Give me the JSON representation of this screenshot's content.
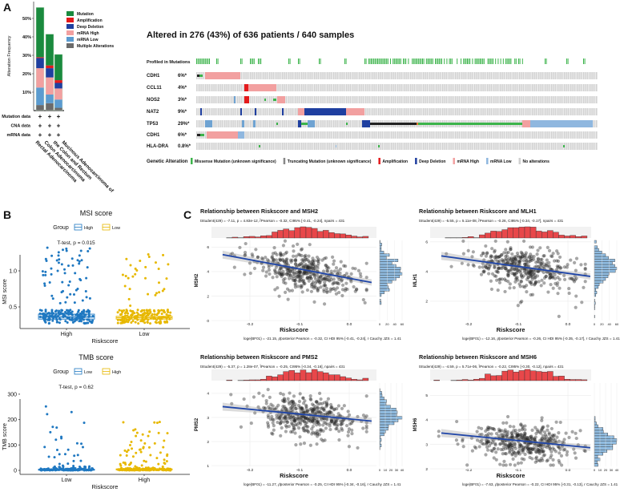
{
  "panel_labels": {
    "a": "A",
    "b": "B",
    "c": "C"
  },
  "colors": {
    "mutation": "#1a8a3e",
    "amplification": "#e41a1c",
    "deep_deletion": "#1f3fa0",
    "mrna_high": "#f2a0a0",
    "mrna_low": "#6fa3d2",
    "multiple": "#6b6b6b",
    "no_alteration": "#d0d0d0",
    "missense": "#3cb44b",
    "truncating": "#222222",
    "group_blue": "#1f78c1",
    "group_yellow": "#e7b800",
    "hist_top": "#e8474a",
    "hist_right": "#8fbbe0",
    "fit_line": "#1f45a8"
  },
  "oncoprint": {
    "title": "Altered in 276 (43%) of 636 patients / 640 samples",
    "profiled_label": "Profiled in Mutations",
    "genes": [
      {
        "name": "CDH1",
        "pct": "6%*"
      },
      {
        "name": "CCL11",
        "pct": "4%*"
      },
      {
        "name": "NOS2",
        "pct": "3%*"
      },
      {
        "name": "NAT2",
        "pct": "9%*"
      },
      {
        "name": "TP53",
        "pct": "29%*"
      },
      {
        "name": "CDH1",
        "pct": "6%*"
      },
      {
        "name": "HLA-DRA",
        "pct": "0.8%*"
      }
    ],
    "legend_title": "Genetic Alteration",
    "legend": [
      {
        "label": "Missense Mutation (unknown significance)",
        "color": "#3cb44b"
      },
      {
        "label": "Truncating Mutation (unknown significance)",
        "color": "#888888"
      },
      {
        "label": "Amplification",
        "color": "#e41a1c"
      },
      {
        "label": "Deep Deletion",
        "color": "#1f3fa0"
      },
      {
        "label": "mRNA High",
        "color": "#f2a0a0"
      },
      {
        "label": "mRNA Low",
        "color": "#8fb7df"
      },
      {
        "label": "No alterations",
        "color": "#d0d0d0"
      }
    ]
  },
  "chart_data": [
    {
      "id": "alteration_frequency",
      "type": "bar",
      "stacked": true,
      "ylabel": "Alteration Frequency",
      "yticks": [
        "10%",
        "20%",
        "30%",
        "40%",
        "50%"
      ],
      "ylim": [
        0,
        57
      ],
      "categories": [
        "Rectal Adenocarcinoma",
        "Colon Adenocarcinoma",
        "Mucinous Adenocarcinoma of the Colon and Rectum"
      ],
      "category_lines": [
        [
          "Rectal Adenocarcinoma"
        ],
        [
          "Colon Adenocarcinoma"
        ],
        [
          "Mucinous Adenocarcinoma of",
          "the Colon and Rectum"
        ]
      ],
      "series": [
        {
          "name": "Multiple Alterations",
          "color": "#6b6b6b",
          "values": [
            3,
            4,
            1.5
          ]
        },
        {
          "name": "mRNA Low",
          "color": "#5b9bd0",
          "values": [
            9.5,
            4.7,
            4.5
          ]
        },
        {
          "name": "mRNA High",
          "color": "#f2a0a0",
          "values": [
            10.5,
            9.3,
            6
          ]
        },
        {
          "name": "Deep Deletion",
          "color": "#1f3fa0",
          "values": [
            5.5,
            5,
            3
          ]
        },
        {
          "name": "Amplification",
          "color": "#e41a1c",
          "values": [
            0.5,
            1.5,
            1.5
          ]
        },
        {
          "name": "Mutation",
          "color": "#1a8a3e",
          "values": [
            27,
            17,
            14
          ]
        }
      ],
      "legend_order": [
        "Mutation",
        "Amplification",
        "Deep Deletion",
        "mRNA High",
        "mRNA Low",
        "Multiple Alterations"
      ],
      "data_rows": [
        {
          "label": "Mutation data",
          "marks": [
            "+",
            "+",
            "+"
          ]
        },
        {
          "label": "CNA data",
          "marks": [
            "+",
            "+",
            "+"
          ]
        },
        {
          "label": "mRNA data",
          "marks": [
            "+",
            "+",
            "+"
          ]
        }
      ]
    },
    {
      "id": "msi",
      "type": "box",
      "title": "MSI score",
      "legend_title": "Group",
      "groups": [
        {
          "name": "High",
          "color": "#1f78c1"
        },
        {
          "name": "Low",
          "color": "#e7b800"
        }
      ],
      "categories": [
        "High",
        "Low"
      ],
      "xlabel": "Riskscore",
      "ylabel": "MSI score",
      "annotation": "T-test, p = 0.015",
      "yticks": [
        "0.5",
        "1.0"
      ],
      "ylim": [
        0.27,
        1.4
      ],
      "boxes": [
        {
          "q1": 0.33,
          "median": 0.36,
          "q3": 0.4
        },
        {
          "q1": 0.33,
          "median": 0.35,
          "q3": 0.37
        }
      ]
    },
    {
      "id": "tmb",
      "type": "box",
      "title": "TMB score",
      "legend_title": "Group",
      "groups": [
        {
          "name": "Low",
          "color": "#1f78c1"
        },
        {
          "name": "High",
          "color": "#e7b800"
        }
      ],
      "categories": [
        "Low",
        "High"
      ],
      "xlabel": "Riskscore",
      "ylabel": "TMB score",
      "annotation": "T-test, p = 0.62",
      "yticks": [
        "0",
        "100",
        "200",
        "300"
      ],
      "ylim": [
        -12,
        330
      ],
      "boxes": [
        {
          "q1": 2,
          "median": 3,
          "q3": 5
        },
        {
          "q1": 2,
          "median": 4,
          "q3": 6
        }
      ]
    },
    {
      "id": "msh2",
      "type": "scatter",
      "title": "Relationship between Riskscore and MSH2",
      "stats_top": "tStudent(429) = -7.11, p = 4.83e-12, r̂Pearson = -0.32, CI95% [-0.41, -0.24], npairs = 431",
      "stats_bottom": "loge(BF01) = -21.15, ρ̂posterior Pearson = -0.32, CI HDI 95% [-0.41, -0.24], r Cauchy JZS = 1.41",
      "xlabel": "Riskscore",
      "ylabel": "MSH2",
      "xticks": [
        "-0.2",
        "-0.1",
        "0.0"
      ],
      "yticks": [
        "0",
        "2",
        "4",
        "6"
      ],
      "xlim": [
        -0.277,
        0.055
      ],
      "ylim": [
        0,
        6.55
      ],
      "fit": {
        "intercept": 3.45,
        "slope": -7.6
      },
      "n": 431,
      "hist_ticks": [
        "0",
        "20",
        "40",
        "60"
      ]
    },
    {
      "id": "mlh1",
      "type": "scatter",
      "title": "Relationship between Riskscore and MLH1",
      "stats_top": "tStudent(429) = -5.55, p = 5.11e-08, r̂Pearson = -0.26, CI95% [-0.34, -0.17], npairs = 431",
      "stats_bottom": "loge(BF01) = -12.16, ρ̂posterior Pearson = -0.26, CI HDI 95% [-0.35, -0.17], r Cauchy JZS = 1.41",
      "xlabel": "Riskscore",
      "ylabel": "MLH1",
      "xticks": [
        "-0.2",
        "-0.1",
        "0.0"
      ],
      "yticks": [
        "2",
        "4",
        "6"
      ],
      "xlim": [
        -0.277,
        0.047
      ],
      "ylim": [
        0.7,
        6.1
      ],
      "fit": {
        "intercept": 3.88,
        "slope": -4.6
      },
      "n": 431,
      "hist_ticks": [
        "0",
        "20",
        "40",
        "60"
      ]
    },
    {
      "id": "pms2",
      "type": "scatter",
      "title": "Relationship between Riskscore and PMS2",
      "stats_top": "tStudent(429) = -5.37, p = 1.28e-07, r̂Pearson = -0.25, CI95% [-0.34, -0.16], npairs = 431",
      "stats_bottom": "loge(BF01) = -11.27, ρ̂posterior Pearson = -0.25, CI HDI 95% [-0.34, -0.16], r Cauchy JZS = 1.41",
      "xlabel": "Riskscore",
      "ylabel": "PMS2",
      "xticks": [
        "-0.2",
        "-0.1",
        "0.0"
      ],
      "yticks": [
        "1",
        "2",
        "3",
        "4"
      ],
      "xlim": [
        -0.277,
        0.055
      ],
      "ylim": [
        0.97,
        4.43
      ],
      "fit": {
        "intercept": 2.94,
        "slope": -2.0
      },
      "n": 431,
      "hist_ticks": [
        "0",
        "10",
        "20",
        "30",
        "40"
      ]
    },
    {
      "id": "msh6",
      "type": "scatter",
      "title": "Relationship between Riskscore and MSH6",
      "stats_top": "tStudent(429) = -4.59, p = 5.71e-06, r̂Pearson = -0.22, CI95% [-0.30, -0.12], npairs = 431",
      "stats_bottom": "loge(BF01) = -7.63, ρ̂posterior Pearson = -0.22, CI HDI 95% [-0.31, -0.13], r Cauchy JZS = 1.41",
      "xlabel": "Riskscore",
      "ylabel": "MSH6",
      "xticks": [
        "-0.2",
        "-0.1",
        "0.0"
      ],
      "yticks": [
        "2",
        "3",
        "4",
        "5"
      ],
      "xlim": [
        -0.277,
        0.047
      ],
      "ylim": [
        2.1,
        5.5
      ],
      "fit": {
        "intercept": 2.95,
        "slope": -2.0
      },
      "n": 431,
      "hist_ticks": [
        "0",
        "10",
        "20",
        "30",
        "40"
      ]
    }
  ]
}
